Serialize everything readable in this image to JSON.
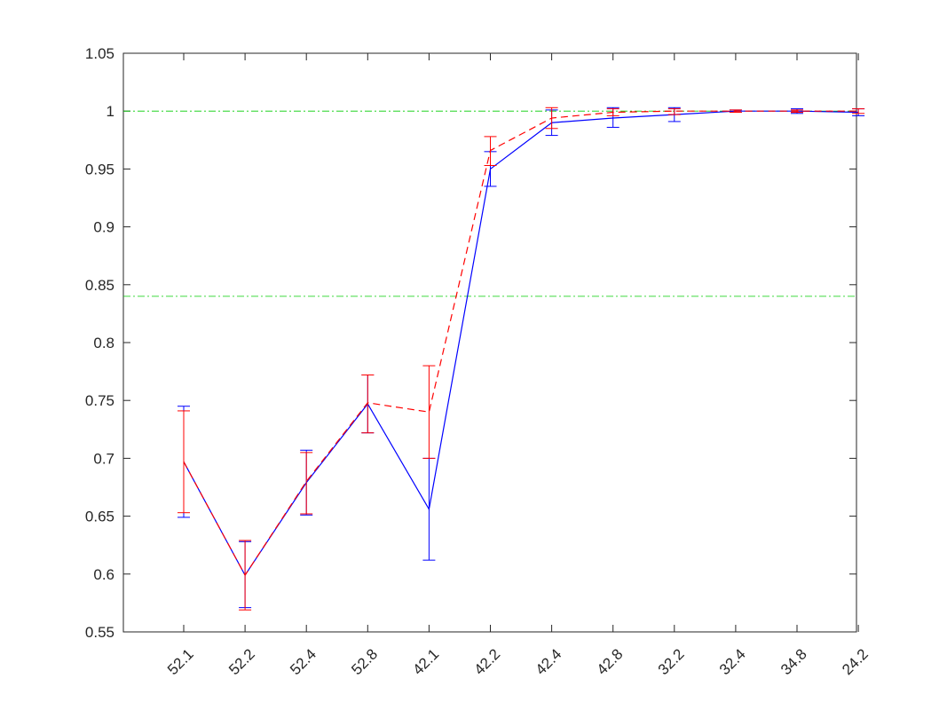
{
  "chart_data": {
    "type": "line",
    "title": "",
    "xlabel": "",
    "ylabel": "",
    "categories": [
      "52.1",
      "52.2",
      "52.4",
      "52.8",
      "42.1",
      "42.2",
      "42.4",
      "42.8",
      "32.2",
      "32.4",
      "34.8",
      "24.2"
    ],
    "ylim": [
      0.55,
      1.05
    ],
    "yticks": [
      0.55,
      0.6,
      0.65,
      0.7,
      0.75,
      0.8,
      0.85,
      0.9,
      0.95,
      1,
      1.05
    ],
    "ytick_labels": [
      "0.55",
      "0.6",
      "0.65",
      "0.7",
      "0.75",
      "0.8",
      "0.85",
      "0.9",
      "0.95",
      "1",
      "1.05"
    ],
    "grid": false,
    "legend": "none",
    "reference_lines": [
      {
        "y": 1.0,
        "color": "#00cc00",
        "style": "dash-dot"
      },
      {
        "y": 0.84,
        "color": "#00cc00",
        "style": "dash-dot"
      }
    ],
    "series": [
      {
        "color": "#0000ff",
        "style": "solid",
        "values": [
          0.697,
          0.599,
          0.679,
          0.747,
          0.656,
          0.95,
          0.99,
          0.994,
          0.997,
          1.0,
          1.0,
          0.999
        ],
        "err_low": [
          0.649,
          0.571,
          0.651,
          0.722,
          0.612,
          0.935,
          0.979,
          0.986,
          0.991,
          0.999,
          0.998,
          0.996
        ],
        "err_high": [
          0.745,
          0.628,
          0.707,
          0.772,
          0.7,
          0.965,
          1.001,
          1.003,
          1.003,
          1.001,
          1.002,
          1.002
        ]
      },
      {
        "color": "#ff0000",
        "style": "dashed",
        "values": [
          0.697,
          0.599,
          0.68,
          0.748,
          0.74,
          0.966,
          0.994,
          0.999,
          1.0,
          1.0,
          1.0,
          1.0
        ],
        "err_low": [
          0.653,
          0.569,
          0.652,
          0.722,
          0.7,
          0.953,
          0.985,
          0.996,
          0.997,
          0.999,
          0.999,
          0.998
        ],
        "err_high": [
          0.741,
          0.629,
          0.705,
          0.772,
          0.78,
          0.978,
          1.003,
          1.002,
          1.002,
          1.001,
          1.001,
          1.002
        ]
      }
    ]
  }
}
